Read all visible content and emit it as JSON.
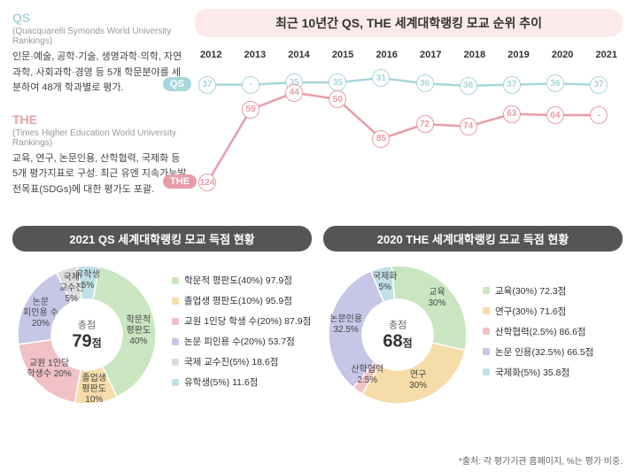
{
  "top": {
    "chart_title": "최근 10년간 QS, THE 세계대학랭킹 모교 순위 추이",
    "qs_desc": {
      "title": "QS",
      "title_color": "#a8d6dc",
      "sub": "(Quacquarelli Symonds World University Rankings)",
      "text": "인문·예술, 공학·기술, 생명과학·의학, 자연과학, 사회과학·경영 등 5개 학문분야를 세분하여 48개 학과별로 평가."
    },
    "the_desc": {
      "title": "THE",
      "title_color": "#e89ca8",
      "sub": "(Times Higher Education World University Rankings)",
      "text": "교육, 연구, 논문인용, 산학협력, 국제화 등 5개 평가지표로 구성. 최근 유엔 지속가능발전목표(SDGs)에 대한 평가도 포괄."
    },
    "years": [
      "2012",
      "2013",
      "2014",
      "2015",
      "2016",
      "2017",
      "2018",
      "2019",
      "2020",
      "2021"
    ],
    "y_range": [
      20,
      130
    ],
    "qs": {
      "label": "QS",
      "color": "#a8d6dc",
      "values": [
        37,
        null,
        35,
        35,
        31,
        36,
        38,
        37,
        36,
        37
      ],
      "display": [
        "37",
        "-",
        "35",
        "35",
        "31",
        "36",
        "38",
        "37",
        "36",
        "37"
      ]
    },
    "the": {
      "label": "THE",
      "color": "#e89ca8",
      "values": [
        124,
        59,
        44,
        50,
        85,
        72,
        74,
        63,
        64,
        null
      ],
      "display": [
        "124",
        "59",
        "44",
        "50",
        "85",
        "72",
        "74",
        "63",
        "64",
        "-"
      ]
    }
  },
  "qs_donut": {
    "title": "2021 QS 세계대학랭킹 모교 득점 현황",
    "center_label": "총점",
    "center_value": "79",
    "center_suffix": "점",
    "segments": [
      {
        "name": "학문적 평판도",
        "pct": 40,
        "color": "#c9e6c0",
        "labelA": "학문적",
        "labelB": "평판도",
        "labelC": "40%"
      },
      {
        "name": "졸업생 평판도",
        "pct": 10,
        "color": "#f6dca8",
        "labelA": "졸업생",
        "labelB": "평판도",
        "labelC": "10%"
      },
      {
        "name": "교원 1인당 학생 수",
        "pct": 20,
        "color": "#f1c1c6",
        "labelA": "교원 1인당",
        "labelB": "학생수 20%",
        "labelC": ""
      },
      {
        "name": "논문 피인용 수",
        "pct": 20,
        "color": "#c6c6e6",
        "labelA": "논문",
        "labelB": "피인용 수",
        "labelC": "20%"
      },
      {
        "name": "국제 교수진",
        "pct": 5,
        "color": "#dcdcdc",
        "labelA": "국제",
        "labelB": "교수진",
        "labelC": "5%"
      },
      {
        "name": "유학생",
        "pct": 5,
        "color": "#bfe0e6",
        "labelA": "유학생",
        "labelB": "5%",
        "labelC": ""
      }
    ],
    "legend": [
      {
        "color": "#c9e6c0",
        "text": "학문적 평판도(40%) 97.9점"
      },
      {
        "color": "#f6dca8",
        "text": "졸업생 평판도(10%) 95.9점"
      },
      {
        "color": "#f1c1c6",
        "text": "교원 1인당 학생 수(20%) 87.9점"
      },
      {
        "color": "#c6c6e6",
        "text": "논문 피인용 수(20%) 53.7점"
      },
      {
        "color": "#dcdcdc",
        "text": "국제 교수진(5%) 18.6점"
      },
      {
        "color": "#bfe0e6",
        "text": "유학생(5%) 11.6점"
      }
    ]
  },
  "the_donut": {
    "title": "2020 THE 세계대학랭킹 모교 득점 현황",
    "center_label": "총점",
    "center_value": "68",
    "center_suffix": "점",
    "segments": [
      {
        "name": "교육",
        "pct": 30,
        "color": "#c9e6c0",
        "labelA": "교육",
        "labelB": "30%",
        "labelC": ""
      },
      {
        "name": "연구",
        "pct": 30,
        "color": "#f6dca8",
        "labelA": "연구",
        "labelB": "30%",
        "labelC": ""
      },
      {
        "name": "산학협력",
        "pct": 2.5,
        "color": "#f1c1c6",
        "labelA": "산학협력",
        "labelB": "2.5%",
        "labelC": ""
      },
      {
        "name": "논문인용",
        "pct": 32.5,
        "color": "#c6c6e6",
        "labelA": "논문인용",
        "labelB": "32.5%",
        "labelC": ""
      },
      {
        "name": "국제화",
        "pct": 5,
        "color": "#bfe0e6",
        "labelA": "국제화",
        "labelB": "5%",
        "labelC": ""
      }
    ],
    "legend": [
      {
        "color": "#c9e6c0",
        "text": "교육(30%) 72.3점"
      },
      {
        "color": "#f6dca8",
        "text": "연구(30%) 71.6점"
      },
      {
        "color": "#f1c1c6",
        "text": "산학협력(2.5%) 86.6점"
      },
      {
        "color": "#c6c6e6",
        "text": "논문 인용(32.5%) 66.5점"
      },
      {
        "color": "#bfe0e6",
        "text": "국제화(5%) 35.8점"
      }
    ]
  },
  "footnote": "*출처: 각 평가기관 홈페이지, %는 평가 비중."
}
